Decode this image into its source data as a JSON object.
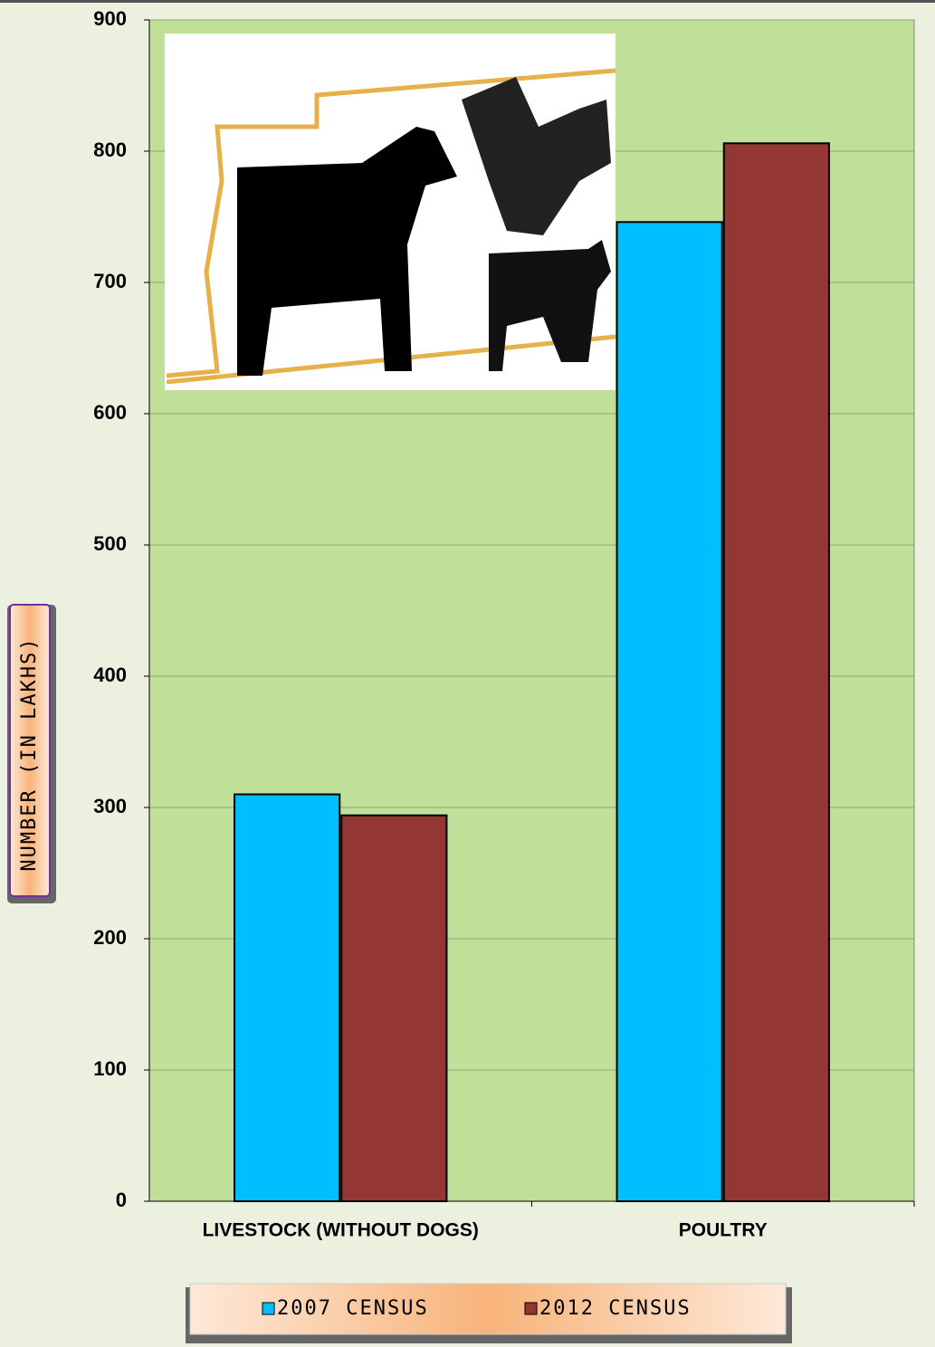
{
  "chart_data": {
    "type": "bar",
    "y_label": "NUMBER (IN LAKHS)",
    "categories": [
      "LIVESTOCK (WITHOUT DOGS)",
      "POULTRY"
    ],
    "series": [
      {
        "name": "2007 CENSUS",
        "color": "#00bfff",
        "values": [
          310,
          746
        ]
      },
      {
        "name": "2012 CENSUS",
        "color": "#943634",
        "values": [
          294,
          806
        ]
      }
    ],
    "ylim": [
      0,
      900
    ],
    "yticks": [
      0,
      100,
      200,
      300,
      400,
      500,
      600,
      700,
      800,
      900
    ],
    "grid": true
  }
}
